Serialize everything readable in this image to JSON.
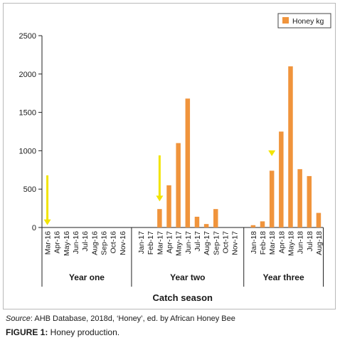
{
  "chart_data": {
    "type": "bar",
    "categories": [
      "Mar-16",
      "Apr-16",
      "May-16",
      "Jun-16",
      "Jul-16",
      "Aug-16",
      "Sep-16",
      "Oct-16",
      "Nov-16",
      "",
      "Jan-17",
      "Feb-17",
      "Mar-17",
      "Apr-17",
      "May-17",
      "Jun-17",
      "Jul-17",
      "Aug-17",
      "Sep-17",
      "Oct-17",
      "Nov-17",
      "",
      "Jan-18",
      "Feb-18",
      "Mar-18",
      "Apr-18",
      "May-18",
      "Jun-18",
      "Jul-18",
      "Aug-18"
    ],
    "series": [
      {
        "name": "Honey kg",
        "color": "#f0943c",
        "values": [
          0,
          0,
          0,
          0,
          0,
          0,
          0,
          0,
          0,
          null,
          0,
          0,
          240,
          550,
          1100,
          1680,
          140,
          45,
          240,
          0,
          0,
          null,
          30,
          80,
          740,
          1250,
          2100,
          760,
          670,
          190
        ]
      }
    ],
    "ylim": [
      0,
      2500
    ],
    "yticks": [
      0,
      500,
      1000,
      1500,
      2000,
      2500
    ],
    "ytick_labels": [
      "0",
      "500",
      "1000",
      "1500",
      "2000",
      "2500"
    ],
    "groups": [
      {
        "label": "Year one",
        "start": 0,
        "end": 8
      },
      {
        "label": "Year two",
        "start": 10,
        "end": 20
      },
      {
        "label": "Year three",
        "start": 22,
        "end": 29
      }
    ],
    "xlabel": "Catch season",
    "ylabel": "",
    "legend_position": "top-right",
    "grid": false,
    "annotations": [
      {
        "type": "arrow",
        "direction": "down",
        "color": "#f2e400",
        "x_category": 0,
        "y_from": 680,
        "y_to": 30
      },
      {
        "type": "arrow",
        "direction": "down",
        "color": "#f2e400",
        "x_category": 12,
        "y_from": 940,
        "y_to": 340
      },
      {
        "type": "arrow",
        "direction": "down",
        "color": "#f2e400",
        "x_category": 24,
        "y_from": 1000,
        "y_to": 930
      }
    ]
  },
  "caption": {
    "source_label": "Source",
    "source_text": ": AHB Database, 2018d, ‘Honey’, ed. by African Honey Bee",
    "figure_label": "FIGURE 1:",
    "figure_text": " Honey production."
  }
}
